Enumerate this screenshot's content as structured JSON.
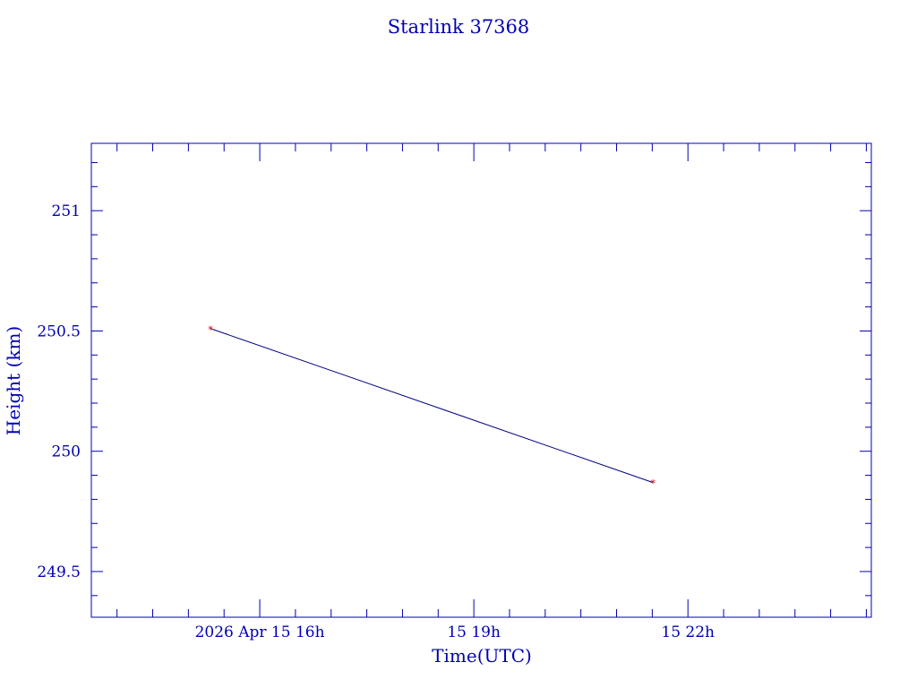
{
  "chart_data": {
    "type": "line",
    "title": "Starlink 37368",
    "xlabel": "Time(UTC)",
    "ylabel": "Height (km)",
    "x_unit": "hours UTC on 2026 Apr 15",
    "xlim": [
      13.64,
      24.57
    ],
    "ylim": [
      249.31,
      251.28
    ],
    "x_ticks": [
      {
        "value": 16,
        "label": "2026 Apr 15  16h"
      },
      {
        "value": 19,
        "label": "15  19h"
      },
      {
        "value": 22,
        "label": "15  22h"
      }
    ],
    "x_minor_step": 0.5,
    "y_ticks": [
      {
        "value": 249.5,
        "label": "249.5"
      },
      {
        "value": 250,
        "label": "250"
      },
      {
        "value": 250.5,
        "label": "250.5"
      },
      {
        "value": 251,
        "label": "251"
      }
    ],
    "y_minor_step": 0.1,
    "series": [
      {
        "name": "Height",
        "x": [
          15.31,
          21.51
        ],
        "y": [
          250.51,
          249.87
        ],
        "line_color": "#000080",
        "marker_color": "#e00000"
      }
    ],
    "grid": false,
    "axis_color": "#0000b4"
  }
}
